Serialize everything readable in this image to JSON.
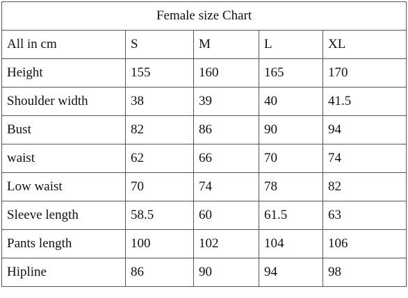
{
  "title": "Female size Chart",
  "table": {
    "header": [
      "All in cm",
      "S",
      "M",
      "L",
      "XL"
    ],
    "rows": [
      [
        "Height",
        "155",
        "160",
        "165",
        "170"
      ],
      [
        "Shoulder width",
        "38",
        "39",
        "40",
        "41.5"
      ],
      [
        "Bust",
        "82",
        "86",
        "90",
        "94"
      ],
      [
        "waist",
        "62",
        "66",
        "70",
        "74"
      ],
      [
        "Low waist",
        "70",
        "74",
        "78",
        "82"
      ],
      [
        "Sleeve length",
        "58.5",
        "60",
        "61.5",
        "63"
      ],
      [
        "Pants length",
        "100",
        "102",
        "104",
        "106"
      ],
      [
        "Hipline",
        "86",
        "90",
        "94",
        "98"
      ]
    ]
  }
}
